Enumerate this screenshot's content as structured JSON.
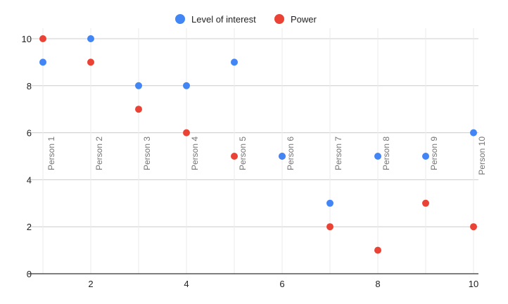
{
  "chart_data": {
    "type": "scatter",
    "title": "",
    "xlabel": "",
    "ylabel": "",
    "xlim": [
      1,
      10
    ],
    "ylim": [
      0,
      10
    ],
    "x_ticks": [
      2,
      4,
      6,
      8,
      10
    ],
    "y_ticks": [
      0,
      2,
      4,
      6,
      8,
      10
    ],
    "grid": "on",
    "legend_position": "top",
    "series": [
      {
        "name": "Level of interest",
        "color": "#4285f4",
        "x": [
          1,
          2,
          3,
          4,
          5,
          6,
          7,
          8,
          9,
          10
        ],
        "y": [
          9,
          10,
          8,
          8,
          9,
          5,
          3,
          5,
          5,
          6
        ]
      },
      {
        "name": "Power",
        "color": "#ea4335",
        "x": [
          1,
          2,
          3,
          4,
          5,
          6,
          7,
          8,
          9,
          10
        ],
        "y": [
          10,
          9,
          7,
          6,
          5,
          5,
          2,
          1,
          3,
          2
        ]
      }
    ],
    "point_labels": [
      {
        "x": 1,
        "text": "Person 1"
      },
      {
        "x": 2,
        "text": "Person 2"
      },
      {
        "x": 3,
        "text": "Person 3"
      },
      {
        "x": 4,
        "text": "Person 4"
      },
      {
        "x": 5,
        "text": "Person 5"
      },
      {
        "x": 6,
        "text": "Person 6"
      },
      {
        "x": 7,
        "text": "Person 7"
      },
      {
        "x": 8,
        "text": "Person 8"
      },
      {
        "x": 9,
        "text": "Person 9"
      },
      {
        "x": 10,
        "text": "Person 10"
      }
    ]
  }
}
